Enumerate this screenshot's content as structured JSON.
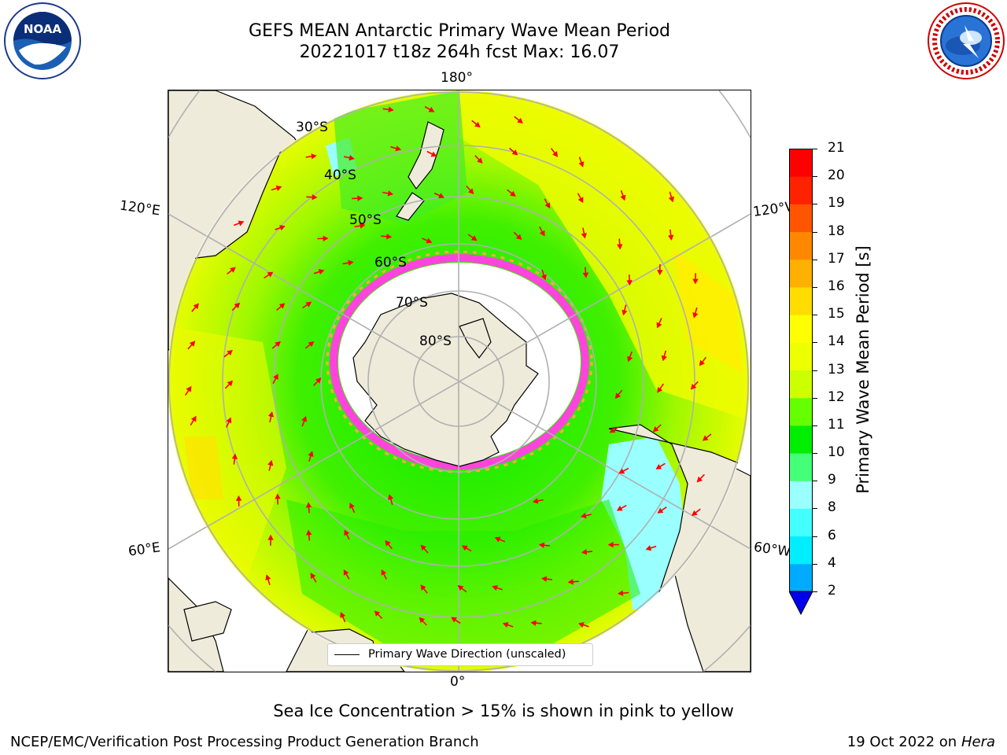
{
  "title_line1": "GEFS MEAN Antarctic Primary Wave Mean Period",
  "title_line2": "20221017 t18z 264h fcst   Max: 16.07",
  "logos": {
    "left": "NOAA",
    "right": "NATIONAL WEATHER SERVICE"
  },
  "map": {
    "projection": "south-polar-stereographic",
    "longitude_labels": {
      "top": "180°",
      "bottom": "0°",
      "upper_left": "120°E",
      "upper_right": "120°W",
      "lower_left": "60°E",
      "lower_right": "60°W"
    },
    "latitude_labels": [
      "30°S",
      "40°S",
      "50°S",
      "60°S",
      "70°S",
      "80°S"
    ],
    "legend_label": "Primary Wave Direction (unscaled)",
    "colors": {
      "land": "#efebda",
      "ice_edge": "#ff44dd",
      "ocean_high": "#eefc00",
      "ocean_mid": "#c8fa00",
      "ocean_low": "#22ee00",
      "ocean_lowest": "#99ffff",
      "arrow": "#ff0000"
    }
  },
  "colorbar": {
    "label": "Primary Wave Mean Period [s]",
    "ticks": [
      "2",
      "4",
      "6",
      "8",
      "9",
      "10",
      "11",
      "12",
      "13",
      "14",
      "15",
      "16",
      "17",
      "18",
      "19",
      "20",
      "21"
    ],
    "colors": [
      "#0066ff",
      "#00aaff",
      "#00eeff",
      "#44ffff",
      "#99ffff",
      "#44ff77",
      "#00ee00",
      "#66ff00",
      "#ccff00",
      "#eeff00",
      "#ffff00",
      "#ffdd00",
      "#ffb000",
      "#ff8800",
      "#ff5500",
      "#ff2200",
      "#ff0000"
    ],
    "extend_color": "#0000ee"
  },
  "footer": {
    "note": "Sea Ice Concentration > 15% is shown in pink to yellow",
    "left": "NCEP/EMC/Verification Post Processing Product Generation Branch",
    "right_prefix": "19 Oct 2022 on ",
    "right_machine": "Hera"
  }
}
